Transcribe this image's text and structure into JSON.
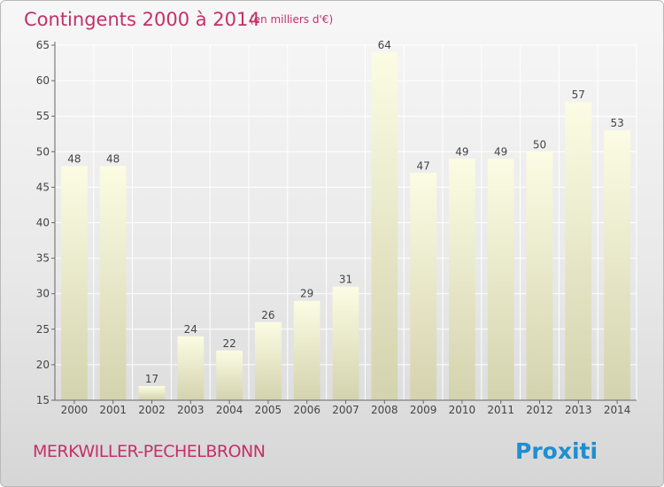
{
  "header": {
    "title": "Contingents 2000 à 2014",
    "subtitle": "(en milliers d'€)"
  },
  "footer": {
    "commune": "MERKWILLER-PECHELBRONN",
    "brand": "Proxiti"
  },
  "colors": {
    "accent": "#c4306a",
    "bar_light": "#fcfce4",
    "bar_dark": "#d3d3ae",
    "logo_blue": "#1e8fd0",
    "logo_orange": "#f39325",
    "logo_green": "#8dbe22"
  },
  "chart_data": {
    "type": "bar",
    "title": "Contingents 2000 à 2014",
    "subtitle": "(en milliers d'€)",
    "xlabel": "",
    "ylabel": "",
    "categories": [
      "2000",
      "2001",
      "2002",
      "2003",
      "2004",
      "2005",
      "2006",
      "2007",
      "2008",
      "2009",
      "2010",
      "2011",
      "2012",
      "2013",
      "2014"
    ],
    "values": [
      48,
      48,
      17,
      24,
      22,
      26,
      29,
      31,
      64,
      47,
      49,
      49,
      50,
      57,
      53
    ],
    "ylim": [
      15,
      65
    ],
    "yticks": [
      15,
      20,
      25,
      30,
      35,
      40,
      45,
      50,
      55,
      60,
      65
    ],
    "grid": true,
    "legend": "none"
  }
}
